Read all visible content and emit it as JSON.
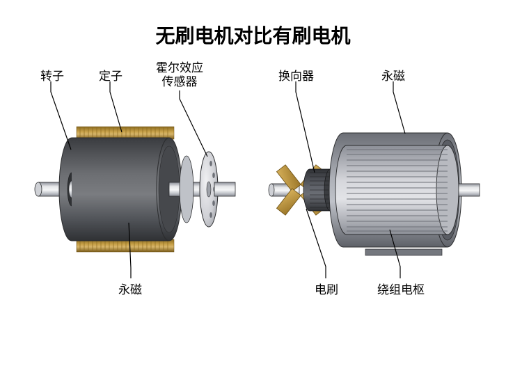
{
  "title": "无刷电机对比有刷电机",
  "brushless": {
    "labels": {
      "rotor": "转子",
      "stator": "定子",
      "hall": "霍尔效应\n传感器",
      "magnet": "永磁"
    },
    "label_fontsize": 17,
    "colors": {
      "shaft_light": "#e7e8ea",
      "shaft_mid": "#bfc2c8",
      "shaft_dark": "#8a8e96",
      "body_light": "#6c6e72",
      "body_mid": "#4f5257",
      "body_dark": "#3a3c40",
      "coil_light": "#c9a24a",
      "coil_dark": "#8a6a1f",
      "sensor_light": "#e6e6e8",
      "sensor_dark": "#b8b9be",
      "outline": "#2b2c2e"
    }
  },
  "brushed": {
    "labels": {
      "commutator": "换向器",
      "magnet": "永磁",
      "brush": "电刷",
      "armature": "绕组电枢"
    },
    "label_fontsize": 17,
    "colors": {
      "housing_light": "#aeb1b8",
      "housing_mid": "#8f939c",
      "housing_dark": "#6b6e75",
      "rotor_light": "#d6d7dc",
      "rotor_mid": "#b3b5bc",
      "rotor_dark": "#8c8f97",
      "commutator_light": "#5e6168",
      "commutator_dark": "#2f3135",
      "brush_light": "#cfa24a",
      "brush_dark": "#9b7628",
      "shaft_light": "#e7e8ea",
      "shaft_mid": "#bfc2c8",
      "shaft_dark": "#8a8e96",
      "magnet_bar": "#74777e",
      "outline": "#2b2c2e"
    }
  },
  "leader_stroke": "#000000",
  "leader_width": 1.2,
  "background": "#ffffff"
}
